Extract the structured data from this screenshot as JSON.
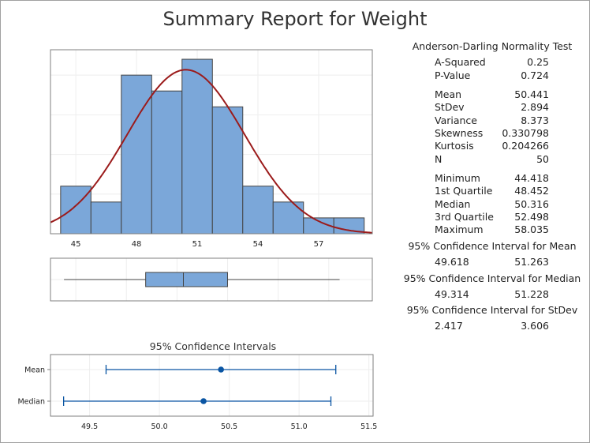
{
  "title": "Summary Report for Weight",
  "stats": {
    "normality_heading": "Anderson-Darling Normality Test",
    "rows": [
      {
        "label": "A-Squared",
        "value": "0.25"
      },
      {
        "label": "P-Value",
        "value": "0.724"
      },
      {
        "label": "Mean",
        "value": "50.441"
      },
      {
        "label": "StDev",
        "value": "2.894"
      },
      {
        "label": "Variance",
        "value": "8.373"
      },
      {
        "label": "Skewness",
        "value": "0.330798"
      },
      {
        "label": "Kurtosis",
        "value": "0.204266"
      },
      {
        "label": "N",
        "value": "50"
      },
      {
        "label": "Minimum",
        "value": "44.418"
      },
      {
        "label": "1st Quartile",
        "value": "48.452"
      },
      {
        "label": "Median",
        "value": "50.316"
      },
      {
        "label": "3rd Quartile",
        "value": "52.498"
      },
      {
        "label": "Maximum",
        "value": "58.035"
      }
    ],
    "ci_mean_heading": "95% Confidence Interval for Mean",
    "ci_mean": [
      "49.618",
      "51.263"
    ],
    "ci_median_heading": "95% Confidence Interval for Median",
    "ci_median": [
      "49.314",
      "51.228"
    ],
    "ci_stdev_heading": "95% Confidence Interval for StDev",
    "ci_stdev": [
      "2.417",
      "3.606"
    ]
  },
  "chart_data": [
    {
      "type": "bar",
      "subtype": "histogram",
      "bin_edges": [
        44.25,
        45.75,
        47.25,
        48.75,
        50.25,
        51.75,
        53.25,
        54.75,
        56.25,
        57.75,
        59.25
      ],
      "counts": [
        3,
        2,
        10,
        9,
        11,
        8,
        3,
        2,
        1,
        1
      ],
      "xticks": [
        "45",
        "48",
        "51",
        "54",
        "57"
      ],
      "xlim": [
        43.75,
        59.65
      ],
      "ylim": [
        0,
        11.6
      ],
      "grid": true,
      "bar_color": "#7ba7d9",
      "fit_curve": {
        "type": "normal",
        "mean": 50.441,
        "stdev": 2.894,
        "color": "#9b1b1b"
      }
    },
    {
      "type": "boxplot",
      "min": 44.418,
      "q1": 48.452,
      "median": 50.316,
      "q3": 52.498,
      "max": 58.035,
      "box_color": "#7ba7d9"
    },
    {
      "type": "interval",
      "title": "95% Confidence Intervals",
      "categories": [
        "Mean",
        "Median"
      ],
      "estimates": [
        50.441,
        50.316
      ],
      "lower": [
        49.618,
        49.314
      ],
      "upper": [
        51.263,
        51.228
      ],
      "xticks": [
        "49.5",
        "50.0",
        "50.5",
        "51.0",
        "51.5"
      ],
      "xlim": [
        49.22,
        51.53
      ],
      "grid": true,
      "color": "#0a55a3"
    }
  ]
}
